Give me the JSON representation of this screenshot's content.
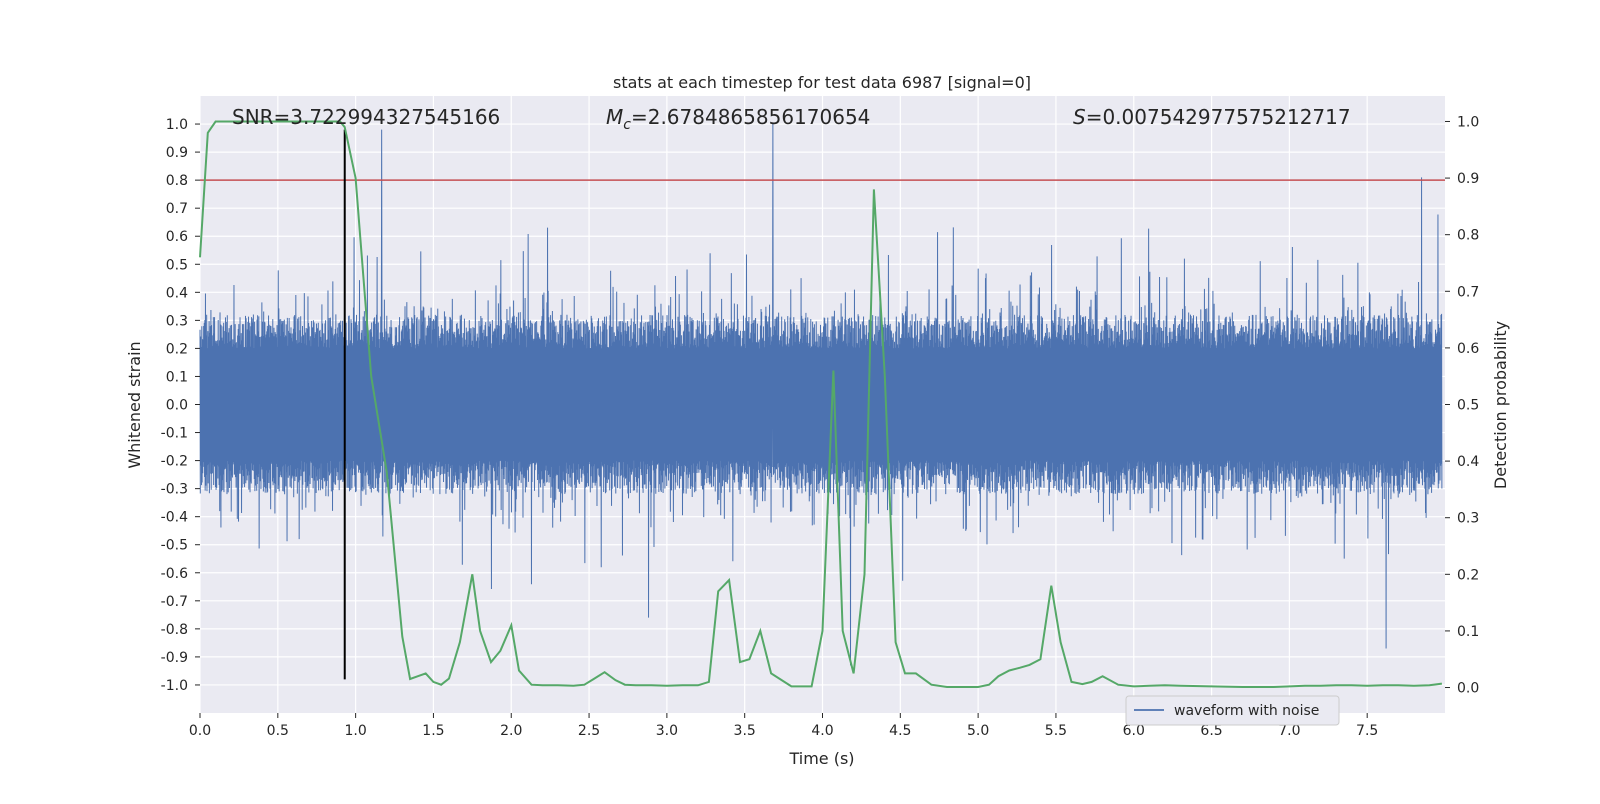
{
  "chart_data": {
    "type": "line",
    "title": "stats at each timestep for test data 6987 [signal=0]",
    "xlabel": "Time (s)",
    "ylabel": "Whitened strain",
    "ylabel_right": "Detection probability",
    "xlim": [
      0.0,
      8.0
    ],
    "ylim": [
      -1.1,
      1.1
    ],
    "ylim_right": [
      -0.045,
      1.045
    ],
    "xticks": [
      "0.0",
      "0.5",
      "1.0",
      "1.5",
      "2.0",
      "2.5",
      "3.0",
      "3.5",
      "4.0",
      "4.5",
      "5.0",
      "5.5",
      "6.0",
      "6.5",
      "7.0",
      "7.5"
    ],
    "yticks": [
      "1.0",
      "0.9",
      "0.8",
      "0.7",
      "0.6",
      "0.5",
      "0.4",
      "0.3",
      "0.2",
      "0.1",
      "0.0",
      "-0.1",
      "-0.2",
      "-0.3",
      "-0.4",
      "-0.5",
      "-0.6",
      "-0.7",
      "-0.8",
      "-0.9",
      "-1.0"
    ],
    "yticks_right": [
      "1.0",
      "0.9",
      "0.8",
      "0.7",
      "0.6",
      "0.5",
      "0.4",
      "0.3",
      "0.2",
      "0.1",
      "0.0"
    ],
    "annotations": {
      "snr": "SNR=3.722994327545166",
      "mc_symbol": "M",
      "mc_subscript": "c",
      "mc_value": "=2.6784865856170654",
      "s_symbol": "S",
      "s_value": "=0.007542977575212717"
    },
    "threshold": {
      "y": 0.8,
      "color": "#c44e52"
    },
    "vline": {
      "x": 0.93,
      "y_top": 0.98,
      "y_bottom": -0.98,
      "color": "#000000"
    },
    "waveform": {
      "name": "waveform with noise",
      "color": "#4c72b0",
      "sample_count": 4096,
      "typical_amplitude": 0.45,
      "spikes": [
        {
          "x": 1.17,
          "y": 0.98
        },
        {
          "x": 3.69,
          "y": 1.0
        },
        {
          "x": 4.19,
          "y": -0.93
        },
        {
          "x": 7.87,
          "y": 0.81
        },
        {
          "x": 7.64,
          "y": -0.87
        }
      ]
    },
    "probability": {
      "name": "Detection probability",
      "color": "#55a868",
      "x": [
        0.0,
        0.05,
        0.1,
        0.15,
        0.2,
        0.3,
        0.4,
        0.5,
        0.6,
        0.7,
        0.8,
        0.9,
        0.93,
        1.0,
        1.1,
        1.2,
        1.3,
        1.35,
        1.4,
        1.45,
        1.5,
        1.55,
        1.6,
        1.67,
        1.75,
        1.8,
        1.87,
        1.93,
        2.0,
        2.05,
        2.13,
        2.2,
        2.3,
        2.4,
        2.47,
        2.53,
        2.6,
        2.67,
        2.73,
        2.8,
        2.9,
        3.0,
        3.1,
        3.2,
        3.27,
        3.33,
        3.4,
        3.47,
        3.53,
        3.6,
        3.67,
        3.8,
        3.93,
        4.0,
        4.07,
        4.13,
        4.2,
        4.27,
        4.33,
        4.4,
        4.47,
        4.53,
        4.6,
        4.7,
        4.8,
        4.93,
        5.0,
        5.07,
        5.13,
        5.2,
        5.27,
        5.33,
        5.4,
        5.47,
        5.53,
        5.6,
        5.67,
        5.73,
        5.8,
        5.9,
        6.0,
        6.1,
        6.2,
        6.3,
        6.5,
        6.7,
        6.9,
        7.0,
        7.1,
        7.2,
        7.3,
        7.4,
        7.5,
        7.6,
        7.7,
        7.8,
        7.9,
        8.0
      ],
      "y": [
        0.76,
        0.98,
        1.0,
        1.0,
        1.0,
        1.0,
        1.0,
        1.0,
        1.0,
        1.0,
        1.0,
        1.0,
        0.99,
        0.9,
        0.55,
        0.38,
        0.09,
        0.015,
        0.02,
        0.025,
        0.01,
        0.005,
        0.016,
        0.08,
        0.2,
        0.1,
        0.045,
        0.065,
        0.11,
        0.03,
        0.005,
        0.004,
        0.004,
        0.003,
        0.005,
        0.015,
        0.027,
        0.013,
        0.005,
        0.004,
        0.004,
        0.003,
        0.004,
        0.004,
        0.01,
        0.17,
        0.19,
        0.045,
        0.05,
        0.1,
        0.025,
        0.002,
        0.002,
        0.1,
        0.56,
        0.1,
        0.025,
        0.2,
        0.88,
        0.55,
        0.08,
        0.025,
        0.025,
        0.005,
        0.001,
        0.001,
        0.001,
        0.005,
        0.02,
        0.03,
        0.035,
        0.04,
        0.05,
        0.18,
        0.08,
        0.01,
        0.006,
        0.01,
        0.02,
        0.005,
        0.002,
        0.003,
        0.004,
        0.003,
        0.002,
        0.001,
        0.001,
        0.002,
        0.003,
        0.003,
        0.004,
        0.004,
        0.003,
        0.004,
        0.004,
        0.003,
        0.004,
        0.007
      ]
    },
    "legend": {
      "label": "waveform with noise",
      "position": "lower center"
    },
    "grid": true,
    "colors": {
      "axes_bg": "#eaeaf2",
      "grid": "#ffffff",
      "text": "#262626"
    }
  }
}
